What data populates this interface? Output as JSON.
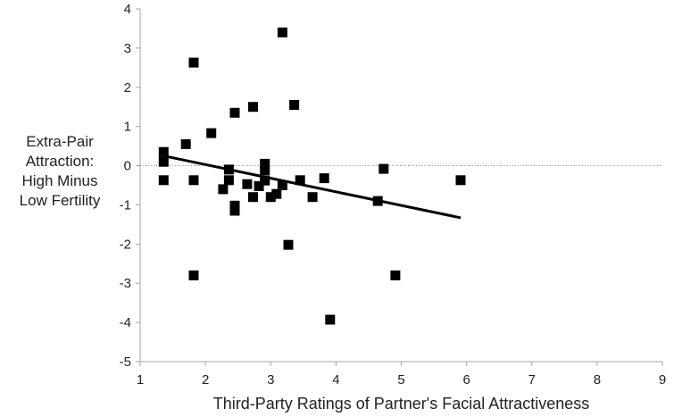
{
  "chart_data": {
    "type": "scatter",
    "title": "",
    "xlabel": "Third-Party Ratings of Partner's Facial Attractiveness",
    "ylabel_lines": [
      "Extra-Pair",
      "Attraction:",
      "High Minus",
      "Low Fertility"
    ],
    "xlim": [
      1,
      9
    ],
    "ylim": [
      -5,
      4
    ],
    "x_ticks": [
      1,
      2,
      3,
      4,
      5,
      6,
      7,
      8,
      9
    ],
    "y_ticks": [
      4,
      3,
      2,
      1,
      0,
      -1,
      -2,
      -3,
      -4,
      -5
    ],
    "zero_reference_line": "dotted",
    "grid": false,
    "legend": "none",
    "marker": "square",
    "marker_color": "#000000",
    "points": [
      {
        "x": 1.36,
        "y": 0.35
      },
      {
        "x": 1.36,
        "y": 0.1
      },
      {
        "x": 1.36,
        "y": -0.37
      },
      {
        "x": 1.7,
        "y": 0.55
      },
      {
        "x": 1.82,
        "y": 2.63
      },
      {
        "x": 1.82,
        "y": -0.37
      },
      {
        "x": 1.82,
        "y": -2.8
      },
      {
        "x": 2.09,
        "y": 0.83
      },
      {
        "x": 2.27,
        "y": -0.6
      },
      {
        "x": 2.36,
        "y": -0.1
      },
      {
        "x": 2.36,
        "y": -0.37
      },
      {
        "x": 2.45,
        "y": 1.35
      },
      {
        "x": 2.45,
        "y": -1.02
      },
      {
        "x": 2.45,
        "y": -1.15
      },
      {
        "x": 2.64,
        "y": -0.47
      },
      {
        "x": 2.73,
        "y": 1.5
      },
      {
        "x": 2.73,
        "y": -0.8
      },
      {
        "x": 2.82,
        "y": -0.52
      },
      {
        "x": 2.91,
        "y": 0.05
      },
      {
        "x": 2.91,
        "y": -0.12
      },
      {
        "x": 2.91,
        "y": -0.38
      },
      {
        "x": 3.0,
        "y": -0.8
      },
      {
        "x": 3.09,
        "y": -0.72
      },
      {
        "x": 3.18,
        "y": 3.4
      },
      {
        "x": 3.18,
        "y": -0.5
      },
      {
        "x": 3.27,
        "y": -2.02
      },
      {
        "x": 3.36,
        "y": 1.55
      },
      {
        "x": 3.45,
        "y": -0.37
      },
      {
        "x": 3.64,
        "y": -0.8
      },
      {
        "x": 3.82,
        "y": -0.32
      },
      {
        "x": 3.91,
        "y": -3.93
      },
      {
        "x": 4.64,
        "y": -0.9
      },
      {
        "x": 4.73,
        "y": -0.08
      },
      {
        "x": 4.91,
        "y": -2.8
      },
      {
        "x": 5.91,
        "y": -0.37
      }
    ],
    "trendline": {
      "x": [
        1.36,
        5.91
      ],
      "y": [
        0.25,
        -1.33
      ]
    },
    "colors": {
      "marker": "#000000",
      "trendline": "#000000",
      "axis": "#a6a6a6",
      "zero_line": "#9a9a9a"
    }
  }
}
